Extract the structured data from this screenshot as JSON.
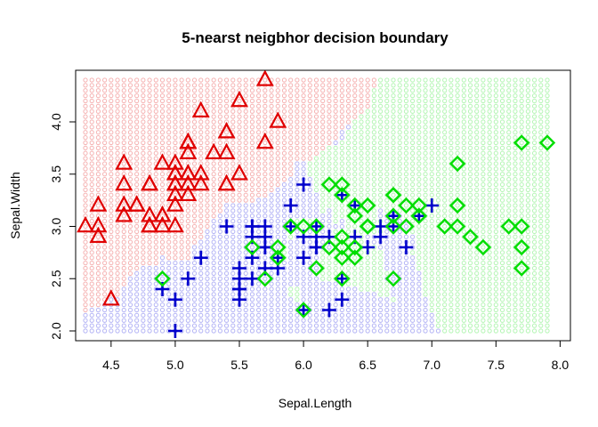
{
  "chart_data": {
    "type": "scatter",
    "title": "5-nearst neigbhor decision boundary",
    "xlabel": "Sepal.Length",
    "ylabel": "Sepal.Width",
    "xlim": [
      4.3,
      7.9
    ],
    "ylim": [
      2.0,
      4.4
    ],
    "x_ticks": [
      "4.5",
      "5.0",
      "5.5",
      "6.0",
      "6.5",
      "7.0",
      "7.5",
      "8.0"
    ],
    "y_ticks": [
      "2.0",
      "2.5",
      "3.0",
      "3.5",
      "4.0"
    ],
    "grid": false,
    "legend": "none",
    "background_grid_step": 0.05,
    "region_colors": {
      "setosa": "#f5b2b2",
      "versicolor": "#b4b4f5",
      "virginica": "#b4f5b4"
    },
    "series": [
      {
        "marker": "triangle",
        "color": "#e00000",
        "points": [
          [
            5.1,
            3.5
          ],
          [
            4.9,
            3.0
          ],
          [
            4.7,
            3.2
          ],
          [
            4.6,
            3.1
          ],
          [
            5.0,
            3.6
          ],
          [
            5.4,
            3.9
          ],
          [
            4.6,
            3.4
          ],
          [
            5.0,
            3.4
          ],
          [
            4.4,
            2.9
          ],
          [
            4.9,
            3.1
          ],
          [
            5.4,
            3.7
          ],
          [
            4.8,
            3.4
          ],
          [
            4.8,
            3.0
          ],
          [
            4.3,
            3.0
          ],
          [
            5.8,
            4.0
          ],
          [
            5.7,
            4.4
          ],
          [
            5.4,
            3.9
          ],
          [
            5.1,
            3.5
          ],
          [
            5.7,
            3.8
          ],
          [
            5.1,
            3.8
          ],
          [
            5.4,
            3.4
          ],
          [
            5.1,
            3.7
          ],
          [
            4.6,
            3.6
          ],
          [
            5.1,
            3.3
          ],
          [
            4.8,
            3.4
          ],
          [
            5.0,
            3.0
          ],
          [
            5.0,
            3.4
          ],
          [
            5.2,
            3.5
          ],
          [
            5.2,
            3.4
          ],
          [
            4.7,
            3.2
          ],
          [
            4.8,
            3.1
          ],
          [
            5.4,
            3.4
          ],
          [
            5.2,
            4.1
          ],
          [
            5.5,
            4.2
          ],
          [
            4.9,
            3.1
          ],
          [
            5.0,
            3.2
          ],
          [
            5.5,
            3.5
          ],
          [
            4.9,
            3.6
          ],
          [
            4.4,
            3.0
          ],
          [
            5.1,
            3.4
          ],
          [
            5.0,
            3.5
          ],
          [
            4.5,
            2.3
          ],
          [
            4.4,
            3.2
          ],
          [
            5.0,
            3.5
          ],
          [
            5.1,
            3.8
          ],
          [
            4.8,
            3.0
          ],
          [
            5.1,
            3.8
          ],
          [
            4.6,
            3.2
          ],
          [
            5.3,
            3.7
          ],
          [
            5.0,
            3.3
          ]
        ]
      },
      {
        "marker": "plus",
        "color": "#0000cc",
        "points": [
          [
            7.0,
            3.2
          ],
          [
            6.4,
            3.2
          ],
          [
            6.9,
            3.1
          ],
          [
            5.5,
            2.3
          ],
          [
            6.5,
            2.8
          ],
          [
            5.7,
            2.8
          ],
          [
            6.3,
            3.3
          ],
          [
            4.9,
            2.4
          ],
          [
            6.6,
            2.9
          ],
          [
            5.2,
            2.7
          ],
          [
            5.0,
            2.0
          ],
          [
            5.9,
            3.0
          ],
          [
            6.0,
            2.2
          ],
          [
            6.1,
            2.9
          ],
          [
            5.6,
            2.9
          ],
          [
            6.7,
            3.1
          ],
          [
            5.6,
            3.0
          ],
          [
            5.8,
            2.7
          ],
          [
            6.2,
            2.2
          ],
          [
            5.6,
            2.5
          ],
          [
            5.9,
            3.2
          ],
          [
            6.1,
            2.8
          ],
          [
            6.3,
            2.5
          ],
          [
            6.1,
            2.8
          ],
          [
            6.4,
            2.9
          ],
          [
            6.6,
            3.0
          ],
          [
            6.8,
            2.8
          ],
          [
            6.7,
            3.0
          ],
          [
            6.0,
            2.9
          ],
          [
            5.7,
            2.6
          ],
          [
            5.5,
            2.4
          ],
          [
            5.5,
            2.4
          ],
          [
            5.8,
            2.7
          ],
          [
            6.0,
            2.7
          ],
          [
            5.4,
            3.0
          ],
          [
            6.0,
            3.4
          ],
          [
            6.7,
            3.1
          ],
          [
            6.3,
            2.3
          ],
          [
            5.6,
            3.0
          ],
          [
            5.5,
            2.5
          ],
          [
            5.5,
            2.6
          ],
          [
            6.1,
            3.0
          ],
          [
            5.8,
            2.6
          ],
          [
            5.0,
            2.3
          ],
          [
            5.6,
            2.7
          ],
          [
            5.7,
            3.0
          ],
          [
            5.7,
            2.9
          ],
          [
            6.2,
            2.9
          ],
          [
            5.1,
            2.5
          ],
          [
            5.7,
            2.8
          ]
        ]
      },
      {
        "marker": "diamond",
        "color": "#00dd00",
        "points": [
          [
            6.3,
            3.3
          ],
          [
            5.8,
            2.7
          ],
          [
            7.1,
            3.0
          ],
          [
            6.3,
            2.9
          ],
          [
            6.5,
            3.0
          ],
          [
            7.6,
            3.0
          ],
          [
            4.9,
            2.5
          ],
          [
            7.3,
            2.9
          ],
          [
            6.7,
            2.5
          ],
          [
            7.2,
            3.6
          ],
          [
            6.5,
            3.2
          ],
          [
            6.4,
            2.7
          ],
          [
            6.8,
            3.0
          ],
          [
            5.7,
            2.5
          ],
          [
            5.8,
            2.8
          ],
          [
            6.4,
            3.2
          ],
          [
            6.5,
            3.0
          ],
          [
            7.7,
            3.8
          ],
          [
            7.7,
            2.6
          ],
          [
            6.0,
            2.2
          ],
          [
            6.9,
            3.2
          ],
          [
            5.6,
            2.8
          ],
          [
            7.7,
            2.8
          ],
          [
            6.3,
            2.7
          ],
          [
            6.7,
            3.3
          ],
          [
            7.2,
            3.2
          ],
          [
            6.2,
            2.8
          ],
          [
            6.1,
            3.0
          ],
          [
            6.4,
            2.8
          ],
          [
            7.2,
            3.0
          ],
          [
            7.4,
            2.8
          ],
          [
            7.9,
            3.8
          ],
          [
            6.4,
            2.8
          ],
          [
            6.3,
            2.8
          ],
          [
            6.1,
            2.6
          ],
          [
            7.7,
            3.0
          ],
          [
            6.3,
            3.4
          ],
          [
            6.4,
            3.1
          ],
          [
            6.0,
            3.0
          ],
          [
            6.9,
            3.1
          ],
          [
            6.7,
            3.1
          ],
          [
            6.9,
            3.1
          ],
          [
            5.8,
            2.7
          ],
          [
            6.8,
            3.2
          ],
          [
            6.7,
            3.3
          ],
          [
            6.7,
            3.0
          ],
          [
            6.3,
            2.5
          ],
          [
            6.5,
            3.0
          ],
          [
            6.2,
            3.4
          ],
          [
            5.9,
            3.0
          ]
        ]
      }
    ]
  }
}
